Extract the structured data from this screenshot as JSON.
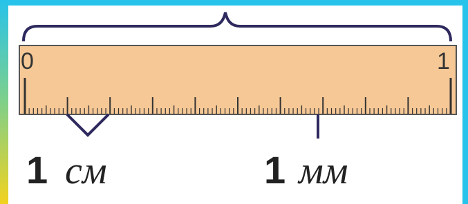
{
  "ruler": {
    "start_label": "0",
    "end_label": "1"
  },
  "labels": [
    {
      "number": "1",
      "unit": "см"
    },
    {
      "number": "1",
      "unit": "мм"
    }
  ]
}
